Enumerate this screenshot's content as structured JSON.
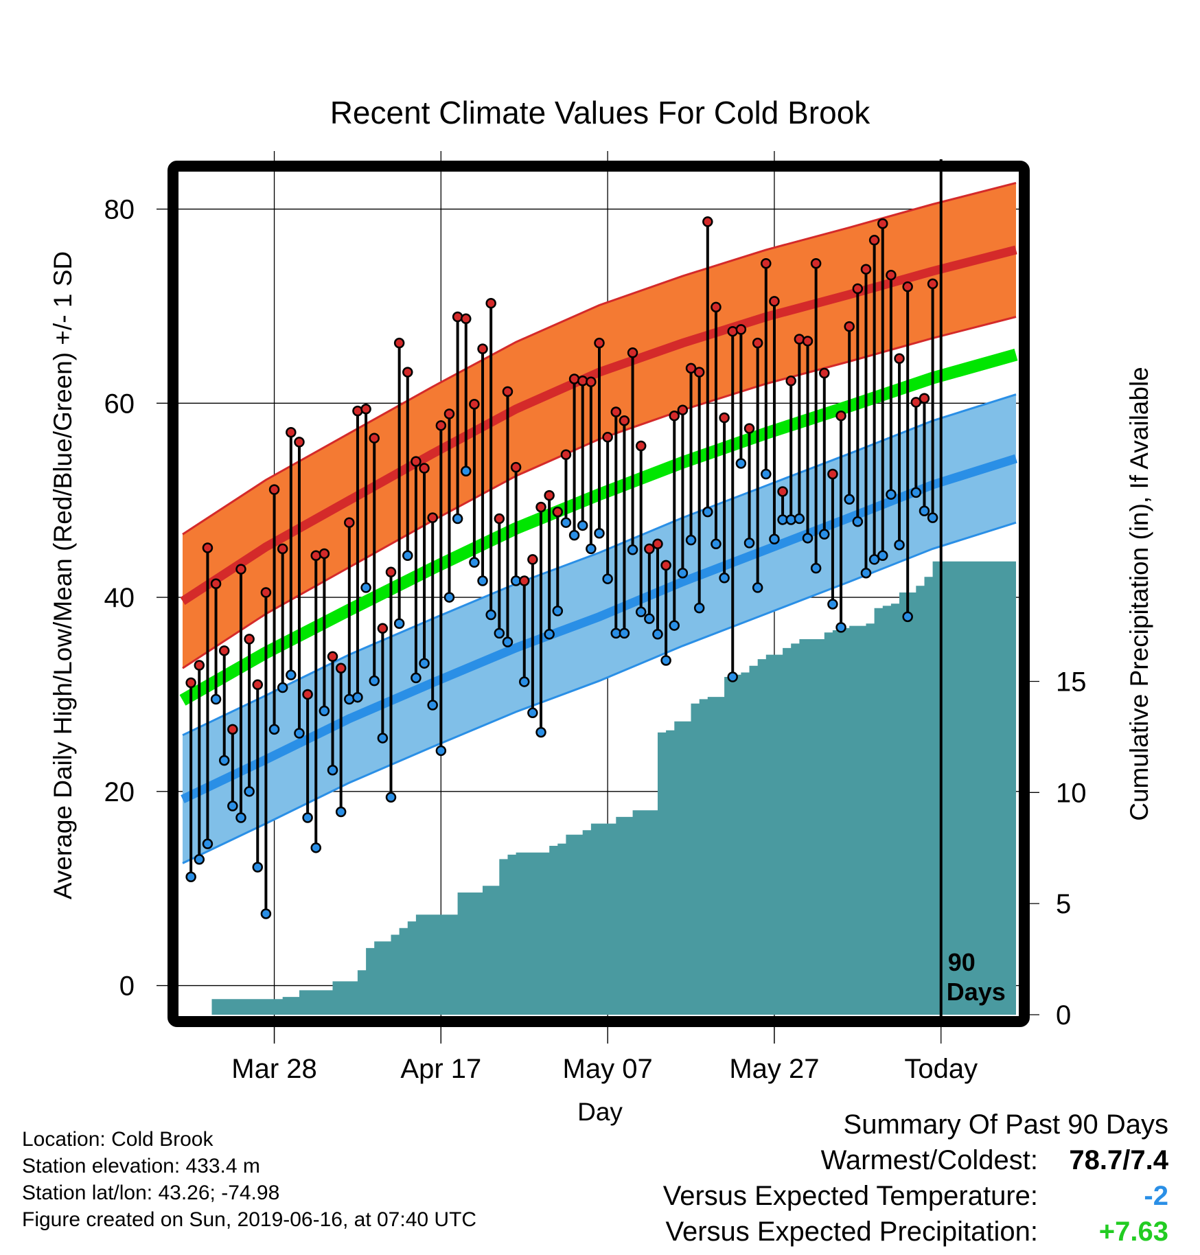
{
  "chart_data": {
    "type": "line",
    "title": "Recent Climate Values For Cold Brook",
    "xlabel": "Day",
    "ylabel": "Average Daily High/Low/Mean (Red/Blue/Green) +/- 1 SD",
    "y2label": "Cumulative Precipitation (in), If Available",
    "x_tick_labels": [
      "Mar 28",
      "Apr 17",
      "May 07",
      "May 27",
      "Today"
    ],
    "x_tick_days": [
      10,
      30,
      50,
      70,
      90
    ],
    "xlim": [
      -1,
      99
    ],
    "ylim": [
      -3,
      84
    ],
    "y_ticks": [
      0,
      20,
      40,
      60,
      80
    ],
    "y2lim": [
      0,
      38
    ],
    "y2_ticks": [
      0,
      5,
      10,
      15
    ],
    "grid": true,
    "today_marker": {
      "day": 90,
      "label_line1": "90",
      "label_line2": "Days"
    },
    "normals": {
      "days": [
        -1,
        9,
        19,
        29,
        39,
        49,
        59,
        69,
        79,
        89,
        99
      ],
      "high_mean": [
        39.6,
        45.2,
        50.0,
        54.8,
        59.4,
        63.2,
        66.2,
        68.9,
        71.2,
        73.6,
        75.8
      ],
      "high_sd": 6.9,
      "low_mean": [
        19.2,
        23.3,
        27.5,
        31.2,
        34.8,
        38.0,
        41.6,
        44.9,
        48.2,
        51.6,
        54.3
      ],
      "low_sd": 6.6,
      "avg_mean": [
        29.4,
        34.3,
        38.7,
        43.0,
        47.1,
        50.6,
        53.9,
        56.9,
        59.7,
        62.6,
        65.0
      ]
    },
    "series": [
      {
        "name": "High",
        "color": "#d42a2a",
        "values": [
          31.2,
          33.0,
          45.1,
          41.4,
          34.5,
          26.4,
          42.9,
          35.7,
          31.0,
          40.5,
          51.1,
          45.0,
          57.0,
          56.0,
          30.0,
          44.3,
          44.5,
          33.9,
          32.7,
          47.7,
          59.2,
          59.4,
          56.4,
          36.8,
          42.6,
          66.2,
          63.2,
          54.0,
          53.3,
          48.2,
          57.7,
          58.9,
          68.9,
          68.7,
          59.9,
          65.6,
          70.3,
          48.1,
          61.2,
          53.4,
          41.7,
          43.9,
          49.3,
          50.5,
          48.8,
          54.7,
          62.5,
          62.3,
          62.2,
          66.2,
          56.5,
          59.1,
          58.2,
          65.2,
          55.6,
          45.0,
          45.5,
          43.3,
          58.7,
          59.3,
          63.6,
          63.2,
          78.7,
          69.9,
          58.5,
          67.4,
          67.6,
          57.4,
          66.2,
          74.4,
          70.5,
          50.9,
          62.3,
          66.6,
          66.4,
          74.4,
          63.1,
          52.7,
          58.7,
          67.9,
          71.8,
          73.8,
          76.8,
          78.5,
          73.2,
          64.6,
          72.0,
          60.1,
          60.5,
          72.3
        ]
      },
      {
        "name": "Low",
        "color": "#2a8fe6",
        "values": [
          11.2,
          13.0,
          14.6,
          29.5,
          23.2,
          18.5,
          17.3,
          20.0,
          12.2,
          7.4,
          26.4,
          30.7,
          32.0,
          26.0,
          17.3,
          14.2,
          28.3,
          22.2,
          17.9,
          29.5,
          29.7,
          41.0,
          31.4,
          25.5,
          19.4,
          37.3,
          44.3,
          31.7,
          33.2,
          28.9,
          24.2,
          40.0,
          48.1,
          53.0,
          43.6,
          41.7,
          38.2,
          36.3,
          35.4,
          41.7,
          31.3,
          28.1,
          26.1,
          36.2,
          38.6,
          47.7,
          46.4,
          47.4,
          45.0,
          46.6,
          41.9,
          36.3,
          36.3,
          44.9,
          38.5,
          37.8,
          36.2,
          33.5,
          37.1,
          42.5,
          45.9,
          38.9,
          48.8,
          45.5,
          42.0,
          31.8,
          53.8,
          45.6,
          41.0,
          52.7,
          46.0,
          48.0,
          48.0,
          48.1,
          46.1,
          43.0,
          46.5,
          39.3,
          36.9,
          50.1,
          47.8,
          42.5,
          43.9,
          44.3,
          50.6,
          45.4,
          38.0,
          50.8,
          48.9,
          48.2
        ]
      }
    ],
    "precip_cumulative": {
      "days": [
        -1,
        2,
        2.5,
        9,
        11,
        13,
        14,
        15,
        16,
        17,
        20,
        21,
        22,
        23,
        24,
        25,
        26,
        27,
        28,
        29,
        30,
        32,
        33,
        35,
        37,
        38,
        39,
        40,
        41,
        43,
        44,
        45,
        47,
        48,
        49,
        50,
        51,
        52,
        53,
        54,
        55,
        56,
        57,
        58,
        60,
        61,
        62,
        63,
        64,
        65,
        66,
        67,
        68,
        69,
        70,
        71,
        72,
        73,
        74,
        75,
        76,
        77,
        78,
        79,
        80,
        81,
        82,
        83,
        84,
        85,
        86,
        87,
        88,
        89,
        90,
        99
      ],
      "values": [
        0.0,
        0.0,
        0.7,
        0.7,
        0.8,
        1.1,
        1.1,
        1.1,
        1.1,
        1.5,
        2.0,
        3.0,
        3.3,
        3.3,
        3.6,
        3.9,
        4.2,
        4.5,
        4.5,
        4.5,
        4.5,
        5.5,
        5.5,
        5.8,
        7.0,
        7.2,
        7.3,
        7.3,
        7.3,
        7.6,
        7.7,
        8.1,
        8.3,
        8.6,
        8.6,
        8.6,
        8.9,
        8.9,
        9.2,
        9.2,
        9.2,
        12.7,
        12.8,
        13.2,
        14.0,
        14.2,
        14.3,
        14.3,
        15.2,
        15.3,
        15.4,
        15.7,
        16.0,
        16.2,
        16.2,
        16.5,
        16.7,
        16.9,
        16.9,
        16.9,
        17.2,
        17.3,
        17.4,
        17.5,
        17.5,
        17.6,
        18.3,
        18.4,
        18.5,
        19.0,
        19.0,
        19.3,
        19.7,
        20.4,
        20.4,
        20.4
      ]
    },
    "colors": {
      "high_band": "#f47a33",
      "high_band_edge": "#d42a2a",
      "high_mean": "#d42a2a",
      "low_band": "#80bfe8",
      "low_band_edge": "#2a8fe6",
      "low_mean": "#2a8fe6",
      "avg_mean": "#00e600",
      "precip": "#4a9aa0",
      "frame": "#000000"
    }
  },
  "info": {
    "location": "Location: Cold Brook",
    "elevation": "Station elevation: 433.4 m",
    "latlon": "Station lat/lon: 43.26; -74.98",
    "created": "Figure created on Sun, 2019-06-16, at 07:40 UTC"
  },
  "summary": {
    "heading": "Summary Of Past 90 Days",
    "warm_cold_label": "Warmest/Coldest:",
    "warm_cold_value": "78.7/7.4",
    "temp_label": "Versus Expected Temperature:",
    "temp_value": "-2",
    "temp_color": "#2a8fe6",
    "precip_label": "Versus Expected Precipitation:",
    "precip_value": "+7.63",
    "precip_color": "#22cc22"
  }
}
